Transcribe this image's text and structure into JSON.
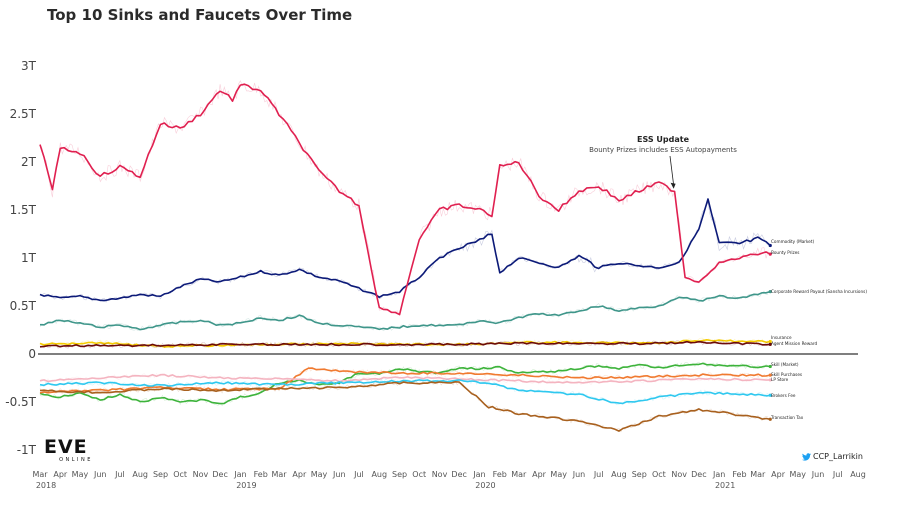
{
  "title": "Top 10 Sinks and Faucets Over Time",
  "logo": {
    "text": "EVE",
    "subtext": "ONLINE"
  },
  "handle": "CCP_Larrikin",
  "icons": {
    "twitter": "twitter-bird-icon"
  },
  "chart_data": {
    "type": "line",
    "title": "Top 10 Sinks and Faucets Over Time",
    "xlabel": "",
    "ylabel": "",
    "ylim": [
      -1.05,
      3.1
    ],
    "y_ticks": [
      {
        "value": 3,
        "label": "3T"
      },
      {
        "value": 2.5,
        "label": "2.5T"
      },
      {
        "value": 2,
        "label": "2T"
      },
      {
        "value": 1.5,
        "label": "1.5T"
      },
      {
        "value": 1,
        "label": "1T"
      },
      {
        "value": 0.5,
        "label": "0.5T"
      },
      {
        "value": 0,
        "label": "0"
      },
      {
        "value": -0.5,
        "label": "-0.5T"
      },
      {
        "value": -1,
        "label": "-1T"
      }
    ],
    "x_ticks": [
      {
        "date": "2018-03",
        "label": "Mar",
        "year": "2018"
      },
      {
        "date": "2018-04",
        "label": "Apr"
      },
      {
        "date": "2018-05",
        "label": "May"
      },
      {
        "date": "2018-06",
        "label": "Jun"
      },
      {
        "date": "2018-07",
        "label": "Jul"
      },
      {
        "date": "2018-08",
        "label": "Aug"
      },
      {
        "date": "2018-09",
        "label": "Sep"
      },
      {
        "date": "2018-10",
        "label": "Oct"
      },
      {
        "date": "2018-11",
        "label": "Nov"
      },
      {
        "date": "2018-12",
        "label": "Dec"
      },
      {
        "date": "2019-01",
        "label": "Jan",
        "year": "2019"
      },
      {
        "date": "2019-02",
        "label": "Feb"
      },
      {
        "date": "2019-03",
        "label": "Mar"
      },
      {
        "date": "2019-04",
        "label": "Apr"
      },
      {
        "date": "2019-05",
        "label": "May"
      },
      {
        "date": "2019-06",
        "label": "Jun"
      },
      {
        "date": "2019-07",
        "label": "Jul"
      },
      {
        "date": "2019-08",
        "label": "Aug"
      },
      {
        "date": "2019-09",
        "label": "Sep"
      },
      {
        "date": "2019-10",
        "label": "Oct"
      },
      {
        "date": "2019-11",
        "label": "Nov"
      },
      {
        "date": "2019-12",
        "label": "Dec"
      },
      {
        "date": "2020-01",
        "label": "Jan",
        "year": "2020"
      },
      {
        "date": "2020-02",
        "label": "Feb"
      },
      {
        "date": "2020-03",
        "label": "Mar"
      },
      {
        "date": "2020-04",
        "label": "Apr"
      },
      {
        "date": "2020-05",
        "label": "May"
      },
      {
        "date": "2020-06",
        "label": "Jun"
      },
      {
        "date": "2020-07",
        "label": "Jul"
      },
      {
        "date": "2020-08",
        "label": "Aug"
      },
      {
        "date": "2020-09",
        "label": "Sep"
      },
      {
        "date": "2020-10",
        "label": "Oct"
      },
      {
        "date": "2020-11",
        "label": "Nov"
      },
      {
        "date": "2020-12",
        "label": "Dec"
      },
      {
        "date": "2021-01",
        "label": "Jan",
        "year": "2021"
      },
      {
        "date": "2021-02",
        "label": "Feb"
      },
      {
        "date": "2021-03",
        "label": "Mar"
      },
      {
        "date": "2021-04",
        "label": "Apr"
      },
      {
        "date": "2021-05",
        "label": "May"
      },
      {
        "date": "2021-06",
        "label": "Jun"
      },
      {
        "date": "2021-07",
        "label": "Jul"
      },
      {
        "date": "2021-08",
        "label": "Aug"
      }
    ],
    "grid": false,
    "legend": "right-end labels",
    "annotation": {
      "title": "ESS Update",
      "subtitle": "Bounty Prizes includes ESS Autopayments",
      "date": "2020-10-25",
      "value": 1.7
    },
    "series": [
      {
        "name": "Commodity (Market)",
        "color": "#0c1a78",
        "x": [
          "2018-03-01",
          "2018-04-01",
          "2018-05-01",
          "2018-06-01",
          "2018-07-01",
          "2018-08-01",
          "2018-09-01",
          "2018-10-01",
          "2018-11-01",
          "2018-12-01",
          "2019-01-01",
          "2019-02-01",
          "2019-03-01",
          "2019-04-01",
          "2019-05-01",
          "2019-06-01",
          "2019-07-01",
          "2019-08-01",
          "2019-09-01",
          "2019-10-01",
          "2019-11-01",
          "2019-12-01",
          "2020-01-01",
          "2020-01-20",
          "2020-02-01",
          "2020-03-01",
          "2020-04-01",
          "2020-05-01",
          "2020-06-01",
          "2020-07-01",
          "2020-08-01",
          "2020-09-01",
          "2020-10-01",
          "2020-11-01",
          "2020-12-01",
          "2020-12-15",
          "2021-01-01",
          "2021-02-01",
          "2021-03-01",
          "2021-03-20"
        ],
        "values": [
          0.62,
          0.58,
          0.6,
          0.56,
          0.58,
          0.62,
          0.6,
          0.7,
          0.78,
          0.75,
          0.8,
          0.86,
          0.82,
          0.88,
          0.8,
          0.76,
          0.68,
          0.6,
          0.65,
          0.8,
          1.0,
          1.1,
          1.18,
          1.25,
          0.85,
          1.0,
          0.95,
          0.9,
          1.02,
          0.9,
          0.95,
          0.92,
          0.9,
          0.95,
          1.3,
          1.6,
          1.15,
          1.15,
          1.2,
          1.13
        ]
      },
      {
        "name": "Bounty Prizes",
        "color": "#e02050",
        "x": [
          "2018-03-01",
          "2018-03-20",
          "2018-04-01",
          "2018-05-01",
          "2018-06-01",
          "2018-07-01",
          "2018-08-01",
          "2018-09-01",
          "2018-10-01",
          "2018-11-01",
          "2018-12-01",
          "2018-12-20",
          "2019-01-01",
          "2019-02-01",
          "2019-03-01",
          "2019-04-01",
          "2019-05-01",
          "2019-06-01",
          "2019-07-01",
          "2019-08-01",
          "2019-09-01",
          "2019-10-01",
          "2019-11-01",
          "2019-12-01",
          "2020-01-01",
          "2020-01-20",
          "2020-02-01",
          "2020-03-01",
          "2020-04-01",
          "2020-05-01",
          "2020-06-01",
          "2020-07-01",
          "2020-08-01",
          "2020-09-01",
          "2020-10-01",
          "2020-10-25",
          "2020-11-10",
          "2020-12-01",
          "2021-01-01",
          "2021-02-01",
          "2021-03-01",
          "2021-03-20"
        ],
        "values": [
          2.2,
          1.7,
          2.15,
          2.1,
          1.85,
          1.95,
          1.85,
          2.4,
          2.35,
          2.5,
          2.75,
          2.65,
          2.8,
          2.75,
          2.5,
          2.2,
          1.9,
          1.7,
          1.55,
          0.48,
          0.42,
          1.2,
          1.5,
          1.55,
          1.5,
          1.45,
          1.95,
          2.0,
          1.65,
          1.5,
          1.7,
          1.75,
          1.6,
          1.7,
          1.78,
          1.7,
          0.8,
          0.75,
          0.95,
          1.0,
          1.05,
          1.04
        ]
      },
      {
        "name": "Corporate Reward Payout (Sansha Incursions)",
        "color": "#3f968a",
        "x": [
          "2018-03-01",
          "2018-04-01",
          "2018-05-01",
          "2018-06-01",
          "2018-07-01",
          "2018-08-01",
          "2018-09-01",
          "2018-10-01",
          "2018-11-01",
          "2018-12-01",
          "2019-01-01",
          "2019-02-01",
          "2019-03-01",
          "2019-04-01",
          "2019-05-01",
          "2019-06-01",
          "2019-07-01",
          "2019-08-01",
          "2019-09-01",
          "2019-10-01",
          "2019-11-01",
          "2019-12-01",
          "2020-01-01",
          "2020-02-01",
          "2020-03-01",
          "2020-04-01",
          "2020-05-01",
          "2020-06-01",
          "2020-07-01",
          "2020-08-01",
          "2020-09-01",
          "2020-10-01",
          "2020-11-01",
          "2020-12-01",
          "2021-01-01",
          "2021-02-01",
          "2021-03-01",
          "2021-03-20"
        ],
        "values": [
          0.3,
          0.35,
          0.32,
          0.28,
          0.3,
          0.26,
          0.3,
          0.33,
          0.35,
          0.3,
          0.32,
          0.38,
          0.35,
          0.4,
          0.32,
          0.3,
          0.28,
          0.26,
          0.28,
          0.3,
          0.3,
          0.3,
          0.35,
          0.32,
          0.38,
          0.42,
          0.4,
          0.45,
          0.5,
          0.45,
          0.48,
          0.5,
          0.6,
          0.55,
          0.6,
          0.58,
          0.62,
          0.65
        ]
      },
      {
        "name": "Insurance",
        "color": "#f5cc00",
        "x": [
          "2018-03-01",
          "2018-06-01",
          "2018-09-01",
          "2018-12-01",
          "2019-03-01",
          "2019-06-01",
          "2019-09-01",
          "2019-12-01",
          "2020-03-01",
          "2020-06-01",
          "2020-09-01",
          "2020-12-01",
          "2021-03-20"
        ],
        "values": [
          0.1,
          0.12,
          0.08,
          0.09,
          0.1,
          0.11,
          0.1,
          0.1,
          0.12,
          0.12,
          0.11,
          0.14,
          0.13
        ]
      },
      {
        "name": "Agent Mission Reward",
        "color": "#6b0a0a",
        "x": [
          "2018-03-01",
          "2018-06-01",
          "2018-09-01",
          "2018-12-01",
          "2019-03-01",
          "2019-06-01",
          "2019-09-01",
          "2019-12-01",
          "2020-03-01",
          "2020-06-01",
          "2020-09-01",
          "2020-12-01",
          "2021-03-20"
        ],
        "values": [
          0.08,
          0.09,
          0.09,
          0.1,
          0.1,
          0.1,
          0.1,
          0.1,
          0.11,
          0.11,
          0.11,
          0.12,
          0.1
        ]
      },
      {
        "name": "Skill (Market)",
        "color": "#3db33b",
        "x": [
          "2018-03-01",
          "2018-04-01",
          "2018-05-01",
          "2018-06-01",
          "2018-07-01",
          "2018-08-01",
          "2018-09-01",
          "2018-10-01",
          "2018-11-01",
          "2018-12-01",
          "2019-01-01",
          "2019-02-01",
          "2019-03-01",
          "2019-04-01",
          "2019-05-01",
          "2019-06-01",
          "2019-07-01",
          "2019-08-01",
          "2019-09-01",
          "2019-10-01",
          "2019-11-01",
          "2019-12-01",
          "2020-01-01",
          "2020-02-01",
          "2020-03-01",
          "2020-04-01",
          "2020-05-01",
          "2020-06-01",
          "2020-07-01",
          "2020-08-01",
          "2020-09-01",
          "2020-10-01",
          "2020-11-01",
          "2020-12-01",
          "2021-01-01",
          "2021-02-01",
          "2021-03-01",
          "2021-03-20"
        ],
        "values": [
          -0.42,
          -0.45,
          -0.4,
          -0.48,
          -0.42,
          -0.5,
          -0.45,
          -0.5,
          -0.48,
          -0.52,
          -0.45,
          -0.4,
          -0.3,
          -0.28,
          -0.32,
          -0.3,
          -0.2,
          -0.2,
          -0.15,
          -0.18,
          -0.2,
          -0.15,
          -0.15,
          -0.14,
          -0.2,
          -0.18,
          -0.18,
          -0.15,
          -0.12,
          -0.15,
          -0.12,
          -0.14,
          -0.12,
          -0.1,
          -0.12,
          -0.12,
          -0.14,
          -0.13
        ]
      },
      {
        "name": "Skill Purchases",
        "color": "#f07a30",
        "x": [
          "2018-03-01",
          "2018-06-01",
          "2018-09-01",
          "2018-12-01",
          "2019-03-01",
          "2019-04-15",
          "2019-06-01",
          "2019-09-01",
          "2019-12-01",
          "2020-03-01",
          "2020-06-01",
          "2020-09-01",
          "2020-12-01",
          "2021-03-20"
        ],
        "values": [
          -0.4,
          -0.38,
          -0.35,
          -0.37,
          -0.36,
          -0.15,
          -0.18,
          -0.2,
          -0.2,
          -0.22,
          -0.25,
          -0.24,
          -0.22,
          -0.22
        ]
      },
      {
        "name": "LP Store",
        "color": "#f4b4c0",
        "x": [
          "2018-03-01",
          "2018-06-01",
          "2018-09-01",
          "2018-12-01",
          "2019-03-01",
          "2019-06-01",
          "2019-09-01",
          "2019-12-01",
          "2020-03-01",
          "2020-06-01",
          "2020-09-01",
          "2020-12-01",
          "2021-03-20"
        ],
        "values": [
          -0.28,
          -0.25,
          -0.22,
          -0.25,
          -0.26,
          -0.28,
          -0.24,
          -0.26,
          -0.28,
          -0.3,
          -0.28,
          -0.26,
          -0.27
        ]
      },
      {
        "name": "Brokers Fee",
        "color": "#2fc8ef",
        "x": [
          "2018-03-01",
          "2018-06-01",
          "2018-09-01",
          "2018-12-01",
          "2019-03-01",
          "2019-06-01",
          "2019-09-01",
          "2019-12-01",
          "2020-01-15",
          "2020-03-01",
          "2020-06-01",
          "2020-08-01",
          "2020-10-01",
          "2020-12-01",
          "2021-02-01",
          "2021-03-20"
        ],
        "values": [
          -0.32,
          -0.3,
          -0.33,
          -0.3,
          -0.32,
          -0.3,
          -0.28,
          -0.28,
          -0.3,
          -0.38,
          -0.42,
          -0.52,
          -0.45,
          -0.4,
          -0.42,
          -0.43
        ]
      },
      {
        "name": "Transaction Tax",
        "color": "#a8601e",
        "x": [
          "2018-03-01",
          "2018-06-01",
          "2018-09-01",
          "2018-12-01",
          "2019-03-01",
          "2019-06-01",
          "2019-09-01",
          "2019-12-01",
          "2020-01-15",
          "2020-03-01",
          "2020-06-01",
          "2020-08-01",
          "2020-10-01",
          "2020-12-01",
          "2021-01-01",
          "2021-02-01",
          "2021-03-20"
        ],
        "values": [
          -0.38,
          -0.4,
          -0.36,
          -0.38,
          -0.36,
          -0.35,
          -0.3,
          -0.3,
          -0.55,
          -0.62,
          -0.7,
          -0.8,
          -0.65,
          -0.58,
          -0.6,
          -0.64,
          -0.68
        ]
      }
    ]
  }
}
